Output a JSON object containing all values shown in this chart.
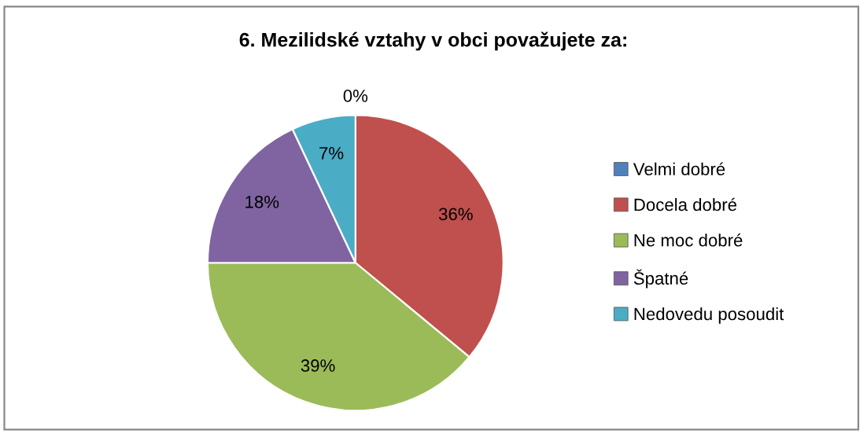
{
  "chart_data": {
    "type": "pie",
    "title": "6. Mezilidské vztahy v obci považujete za:",
    "categories": [
      "Velmi dobré",
      "Docela dobré",
      "Ne moc dobré",
      "Špatné",
      "Nedovedu posoudit"
    ],
    "values": [
      0,
      36,
      39,
      18,
      7
    ],
    "colors": [
      "#4f81bd",
      "#c0504d",
      "#9bbb59",
      "#8064a2",
      "#4bacc6"
    ],
    "value_labels": [
      "0%",
      "36%",
      "39%",
      "18%",
      "7%"
    ],
    "legend": "right"
  }
}
